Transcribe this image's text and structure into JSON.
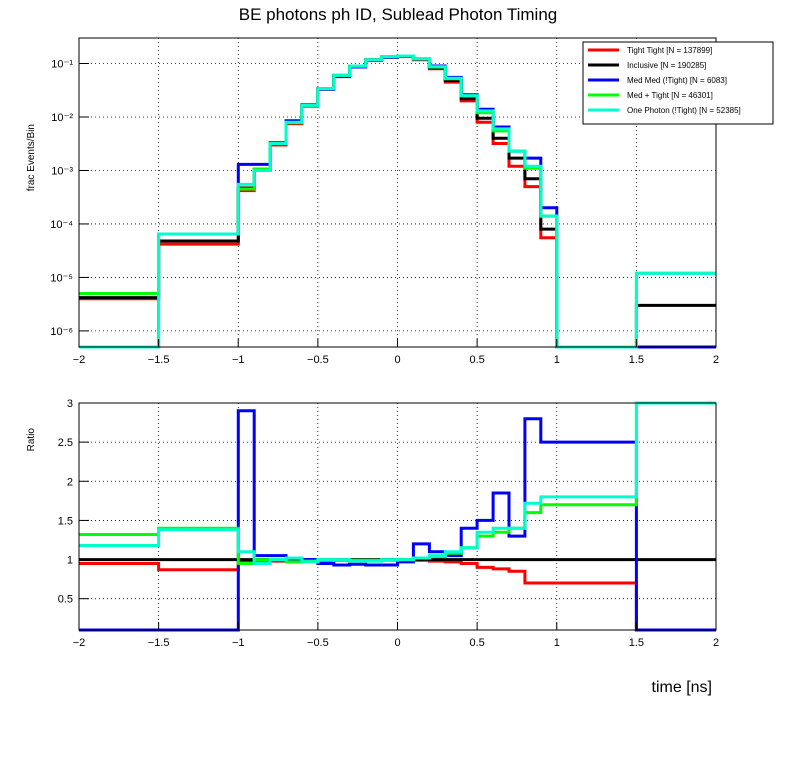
{
  "title": "BE photons ph ID, Sublead Photon Timing",
  "xlabel": "time [ns]",
  "chart_data": [
    {
      "type": "line",
      "panel": "top",
      "ylabel": "frac Events/Bin",
      "yscale": "log",
      "xlim": [
        -2,
        2
      ],
      "ylim": [
        5e-07,
        0.3
      ],
      "grid": true,
      "legend_position": "top-right",
      "bin_edges": [
        -2,
        -1.5,
        -1,
        -0.9,
        -0.8,
        -0.7,
        -0.6,
        -0.5,
        -0.4,
        -0.3,
        -0.2,
        -0.1,
        0,
        0.1,
        0.2,
        0.3,
        0.4,
        0.5,
        0.6,
        0.7,
        0.8,
        0.9,
        1,
        1.5,
        2
      ],
      "x_ticks": [
        "−2",
        "−1.5",
        "−1",
        "−0.5",
        "0",
        "0.5",
        "1",
        "1.5",
        "2"
      ],
      "y_ticks": [
        "10⁻⁶",
        "10⁻⁵",
        "10⁻⁴",
        "10⁻³",
        "10⁻²",
        "10⁻¹"
      ],
      "series": [
        {
          "name": "Tight Tight [N = 137899]",
          "color": "#ff0000",
          "values": [
            4e-06,
            4.2e-05,
            0.00042,
            0.001,
            0.003,
            0.0075,
            0.016,
            0.033,
            0.058,
            0.087,
            0.115,
            0.132,
            0.135,
            0.118,
            0.08,
            0.045,
            0.02,
            0.008,
            0.0032,
            0.0012,
            0.0005,
            5.5e-05,
            0,
            0
          ]
        },
        {
          "name": "Inclusive [N = 190285]",
          "color": "#000000",
          "values": [
            4.2e-06,
            4.8e-05,
            0.00047,
            0.00105,
            0.0032,
            0.0078,
            0.0165,
            0.034,
            0.06,
            0.09,
            0.118,
            0.135,
            0.138,
            0.12,
            0.083,
            0.048,
            0.022,
            0.0095,
            0.004,
            0.0017,
            0.0007,
            8e-05,
            0,
            3e-06
          ]
        },
        {
          "name": "Med Med (!Tight) [N = 6083]",
          "color": "#0000ff",
          "values": [
            0,
            6.5e-05,
            0.0013,
            0.0013,
            0.0033,
            0.0085,
            0.017,
            0.033,
            0.057,
            0.086,
            0.114,
            0.13,
            0.136,
            0.122,
            0.09,
            0.055,
            0.026,
            0.014,
            0.0065,
            0.0023,
            0.0017,
            0.0002,
            0,
            0
          ]
        },
        {
          "name": "Med + Tight [N = 46301]",
          "color": "#00ff00",
          "values": [
            5e-06,
            6.5e-05,
            0.00045,
            0.00105,
            0.0032,
            0.0078,
            0.0165,
            0.034,
            0.06,
            0.089,
            0.117,
            0.134,
            0.138,
            0.122,
            0.086,
            0.052,
            0.025,
            0.012,
            0.0055,
            0.0023,
            0.0011,
            0.00014,
            0,
            1.2e-05
          ]
        },
        {
          "name": "One Photon (!Tight) [N = 52385]",
          "color": "#00ffcc",
          "values": [
            0,
            6.5e-05,
            0.00055,
            0.001,
            0.0032,
            0.008,
            0.0165,
            0.034,
            0.06,
            0.09,
            0.117,
            0.135,
            0.138,
            0.122,
            0.087,
            0.053,
            0.025,
            0.013,
            0.006,
            0.0023,
            0.0012,
            0.00014,
            0,
            1.2e-05
          ]
        }
      ]
    },
    {
      "type": "line",
      "panel": "bottom",
      "ylabel": "Ratio",
      "yscale": "linear",
      "xlim": [
        -2,
        2
      ],
      "ylim": [
        0.1,
        3
      ],
      "grid": true,
      "bin_edges": [
        -2,
        -1.5,
        -1,
        -0.9,
        -0.8,
        -0.7,
        -0.6,
        -0.5,
        -0.4,
        -0.3,
        -0.2,
        -0.1,
        0,
        0.1,
        0.2,
        0.3,
        0.4,
        0.5,
        0.6,
        0.7,
        0.8,
        0.9,
        1,
        1.5,
        2
      ],
      "x_ticks": [
        "−2",
        "−1.5",
        "−1",
        "−0.5",
        "0",
        "0.5",
        "1",
        "1.5",
        "2"
      ],
      "y_ticks": [
        "0.5",
        "1",
        "1.5",
        "2",
        "2.5",
        "3"
      ],
      "series": [
        {
          "name": "Tight Tight",
          "color": "#ff0000",
          "values": [
            0.95,
            0.87,
            0.98,
            0.99,
            0.98,
            0.99,
            0.98,
            0.99,
            0.99,
            0.99,
            0.99,
            1.0,
            1.0,
            0.99,
            0.98,
            0.97,
            0.95,
            0.9,
            0.88,
            0.85,
            0.7,
            0.7,
            0.7,
            0.1
          ]
        },
        {
          "name": "Inclusive",
          "color": "#000000",
          "values": [
            1,
            1,
            1,
            1,
            1,
            1,
            1,
            1,
            1,
            1,
            1,
            1,
            1,
            1,
            1,
            1,
            1,
            1,
            1,
            1,
            1,
            1,
            1,
            1
          ]
        },
        {
          "name": "Med Med (!Tight)",
          "color": "#0000ff",
          "values": [
            0.1,
            0.1,
            2.9,
            1.05,
            1.05,
            1.0,
            1.0,
            0.95,
            0.93,
            0.94,
            0.93,
            0.93,
            0.97,
            1.2,
            1.1,
            1.05,
            1.4,
            1.5,
            1.85,
            1.3,
            2.8,
            2.5,
            2.5,
            0.1
          ]
        },
        {
          "name": "Med + Tight",
          "color": "#00ff00",
          "values": [
            1.32,
            1.4,
            0.95,
            1.0,
            1.0,
            0.97,
            0.98,
            1.0,
            0.99,
            0.99,
            0.99,
            0.99,
            1.0,
            1.02,
            1.04,
            1.08,
            1.15,
            1.3,
            1.35,
            1.4,
            1.6,
            1.7,
            1.7,
            3.0
          ]
        },
        {
          "name": "One Photon (!Tight)",
          "color": "#00ffcc",
          "values": [
            1.18,
            1.38,
            1.1,
            0.95,
            1.0,
            1.02,
            0.97,
            1.0,
            1.0,
            0.98,
            0.98,
            1.0,
            1.0,
            1.02,
            1.05,
            1.1,
            1.15,
            1.35,
            1.4,
            1.4,
            1.72,
            1.8,
            1.8,
            3.0
          ]
        }
      ]
    }
  ]
}
